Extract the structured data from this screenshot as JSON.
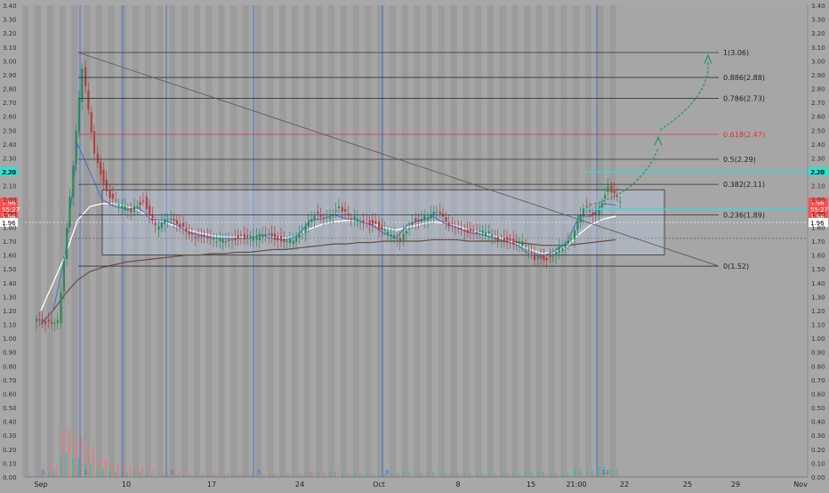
{
  "chart_data": {
    "type": "candlestick",
    "title": "",
    "xlabel": "",
    "ylabel": "",
    "ylim": [
      0.0,
      3.4
    ],
    "y_ticks": [
      "3.40",
      "3.30",
      "3.20",
      "3.10",
      "3.00",
      "2.90",
      "2.80",
      "2.70",
      "2.60",
      "2.50",
      "2.40",
      "2.30",
      "2.20",
      "2.10",
      "2.00",
      "1.90",
      "1.80",
      "1.70",
      "1.60",
      "1.50",
      "1.40",
      "1.30",
      "1.20",
      "1.10",
      "1.00",
      "0.90",
      "0.80",
      "0.70",
      "0.60",
      "0.50",
      "0.40",
      "0.30",
      "0.20",
      "0.10",
      "0.00"
    ],
    "x_ticks": [
      "Sep",
      "10",
      "17",
      "24",
      "Oct",
      "8",
      "15",
      "21:00",
      "22",
      "25",
      "29",
      "Nov"
    ],
    "grid": false,
    "fib_levels": [
      {
        "label": "1(3.06)",
        "value": 3.06
      },
      {
        "label": "0.886(2.88)",
        "value": 2.88
      },
      {
        "label": "0.786(2.73)",
        "value": 2.73
      },
      {
        "label": "0.618(2.47)",
        "value": 2.47
      },
      {
        "label": "0.5(2.29)",
        "value": 2.29
      },
      {
        "label": "0.382(2.11)",
        "value": 2.11
      },
      {
        "label": "0.236(1.89)",
        "value": 1.89
      },
      {
        "label": "0(1.52)",
        "value": 1.52
      }
    ],
    "price_badges": [
      {
        "label": "2.20",
        "value": 2.2
      },
      {
        "label": "1.98",
        "value": 1.98
      },
      {
        "label": "55:27",
        "value": 1.93
      },
      {
        "label": "1.98",
        "value": 1.88
      },
      {
        "label": "1.96",
        "value": 1.835
      }
    ],
    "range_box": {
      "top": 2.07,
      "bottom": 1.6
    },
    "cycle_markers": [
      "0",
      "1",
      "3",
      "5",
      "8",
      "13"
    ],
    "price_series": {
      "name": "",
      "days": [
        0,
        1,
        2,
        3,
        4,
        5,
        6,
        7,
        8,
        9,
        10,
        11,
        12,
        13,
        14,
        15,
        16,
        17,
        18,
        19,
        20,
        21,
        22,
        23,
        24,
        25,
        26,
        27,
        28,
        29,
        30,
        31,
        32,
        33,
        34,
        35,
        36,
        37,
        38,
        39,
        40,
        41,
        42,
        43,
        44,
        45,
        46,
        47,
        48,
        49,
        50,
        51,
        52
      ],
      "values": [
        1.12,
        1.13,
        2.0,
        2.95,
        2.35,
        2.05,
        1.95,
        1.92,
        2.0,
        1.8,
        1.85,
        1.82,
        1.75,
        1.72,
        1.7,
        1.72,
        1.73,
        1.72,
        1.75,
        1.72,
        1.7,
        1.75,
        1.9,
        1.88,
        1.93,
        1.86,
        1.85,
        1.82,
        1.75,
        1.7,
        1.85,
        1.87,
        1.9,
        1.82,
        1.8,
        1.75,
        1.76,
        1.72,
        1.7,
        1.68,
        1.57,
        1.58,
        1.65,
        1.7,
        1.95,
        1.9,
        2.08,
        1.98,
        null,
        null,
        null,
        null,
        null
      ]
    },
    "ma_white": [
      1.2,
      1.4,
      1.6,
      1.85,
      1.95,
      1.97,
      1.97,
      1.95,
      1.92,
      1.87,
      1.84,
      1.81,
      1.78,
      1.76,
      1.74,
      1.73,
      1.73,
      1.73,
      1.73,
      1.73,
      1.72,
      1.74,
      1.79,
      1.82,
      1.84,
      1.85,
      1.85,
      1.83,
      1.8,
      1.78,
      1.8,
      1.82,
      1.84,
      1.83,
      1.81,
      1.78,
      1.76,
      1.74,
      1.71,
      1.68,
      1.64,
      1.61,
      1.62,
      1.66,
      1.75,
      1.82,
      1.86,
      1.88,
      null,
      null,
      null,
      null,
      null
    ],
    "ma_blue": [
      1.1,
      1.2,
      1.6,
      2.4,
      2.2,
      2.0,
      1.95,
      1.93,
      1.94,
      1.86,
      1.85,
      1.82,
      1.77,
      1.74,
      1.72,
      1.72,
      1.72,
      1.72,
      1.74,
      1.72,
      1.71,
      1.74,
      1.85,
      1.86,
      1.89,
      1.86,
      1.85,
      1.82,
      1.76,
      1.72,
      1.82,
      1.85,
      1.88,
      1.83,
      1.8,
      1.76,
      1.75,
      1.72,
      1.7,
      1.67,
      1.6,
      1.59,
      1.63,
      1.69,
      1.88,
      1.88,
      1.97,
      1.96,
      null,
      null,
      null,
      null,
      null
    ],
    "ma_slow": [
      1.1,
      1.2,
      1.32,
      1.42,
      1.48,
      1.51,
      1.53,
      1.55,
      1.56,
      1.57,
      1.58,
      1.59,
      1.6,
      1.6,
      1.61,
      1.61,
      1.62,
      1.62,
      1.63,
      1.64,
      1.64,
      1.65,
      1.66,
      1.67,
      1.68,
      1.68,
      1.69,
      1.69,
      1.7,
      1.7,
      1.7,
      1.7,
      1.71,
      1.71,
      1.71,
      1.7,
      1.7,
      1.7,
      1.7,
      1.69,
      1.68,
      1.67,
      1.67,
      1.67,
      1.68,
      1.69,
      1.7,
      1.71,
      null,
      null,
      null,
      null,
      null
    ],
    "volume": [
      0.4,
      0.9,
      3.6,
      3.0,
      2.2,
      1.4,
      0.9,
      0.7,
      0.8,
      0.6,
      0.5,
      0.4,
      0.3,
      0.3,
      0.3,
      0.3,
      0.3,
      0.3,
      0.3,
      0.3,
      0.3,
      0.3,
      0.5,
      0.4,
      0.5,
      0.3,
      0.3,
      0.3,
      0.3,
      0.3,
      0.4,
      0.4,
      0.4,
      0.3,
      0.3,
      0.3,
      0.3,
      0.3,
      0.3,
      0.3,
      0.4,
      0.4,
      0.3,
      0.3,
      0.6,
      0.5,
      0.8,
      0.6,
      0,
      0,
      0,
      0,
      0
    ]
  }
}
